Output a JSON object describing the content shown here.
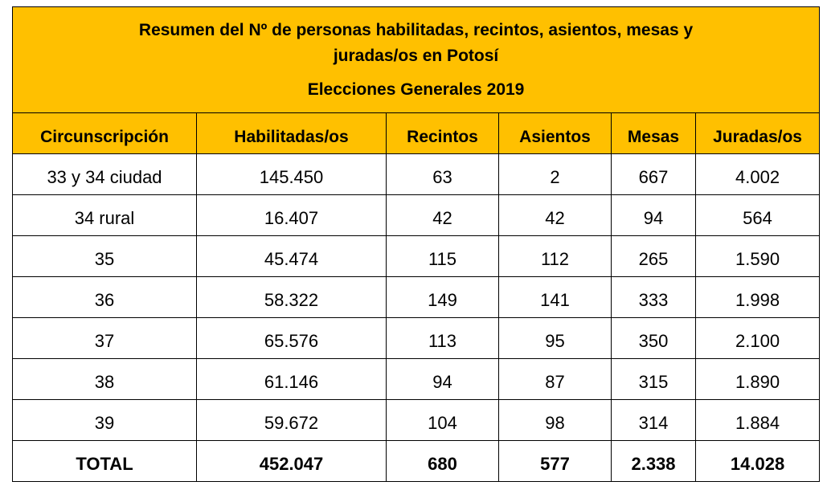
{
  "title": {
    "line1": "Resumen del Nº de personas habilitadas, recintos, asientos, mesas y",
    "line2": "juradas/os en Potosí",
    "line3": "Elecciones Generales 2019"
  },
  "columns": [
    "Circunscripción",
    "Habilitadas/os",
    "Recintos",
    "Asientos",
    "Mesas",
    "Juradas/os"
  ],
  "rows": [
    [
      "33 y 34 ciudad",
      "145.450",
      "63",
      "2",
      "667",
      "4.002"
    ],
    [
      "34 rural",
      "16.407",
      "42",
      "42",
      "94",
      "564"
    ],
    [
      "35",
      "45.474",
      "115",
      "112",
      "265",
      "1.590"
    ],
    [
      "36",
      "58.322",
      "149",
      "141",
      "333",
      "1.998"
    ],
    [
      "37",
      "65.576",
      "113",
      "95",
      "350",
      "2.100"
    ],
    [
      "38",
      "61.146",
      "94",
      "87",
      "315",
      "1.890"
    ],
    [
      "39",
      "59.672",
      "104",
      "98",
      "314",
      "1.884"
    ]
  ],
  "total": [
    "TOTAL",
    "452.047",
    "680",
    "577",
    "2.338",
    "14.028"
  ],
  "colors": {
    "header_bg": "#FFC000"
  }
}
